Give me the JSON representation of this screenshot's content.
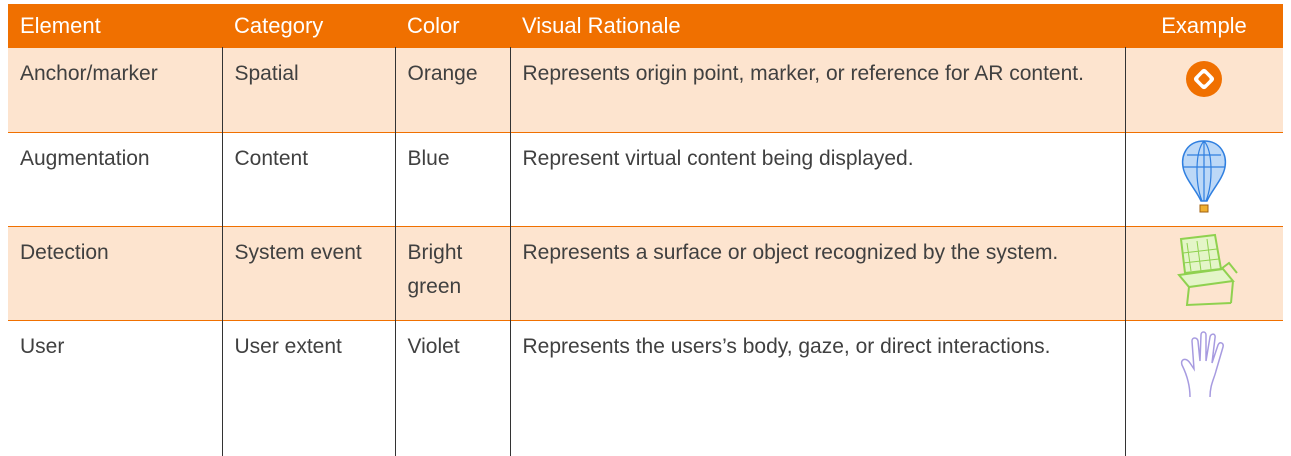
{
  "table": {
    "header": [
      "Element",
      "Category",
      "Color",
      "Visual Rationale",
      "Example"
    ],
    "rows": [
      [
        "Anchor/marker",
        "Spatial",
        "Orange",
        "Represents origin point, marker, or reference for AR content."
      ],
      [
        "Augmentation",
        "Content",
        "Blue",
        "Represent virtual content being displayed."
      ],
      [
        "Detection",
        "System event",
        "Bright green",
        "Represents a surface or object recognized by the system."
      ],
      [
        "User",
        "User extent",
        "Violet",
        "Represents the users’s body, gaze, or direct interactions."
      ]
    ]
  }
}
